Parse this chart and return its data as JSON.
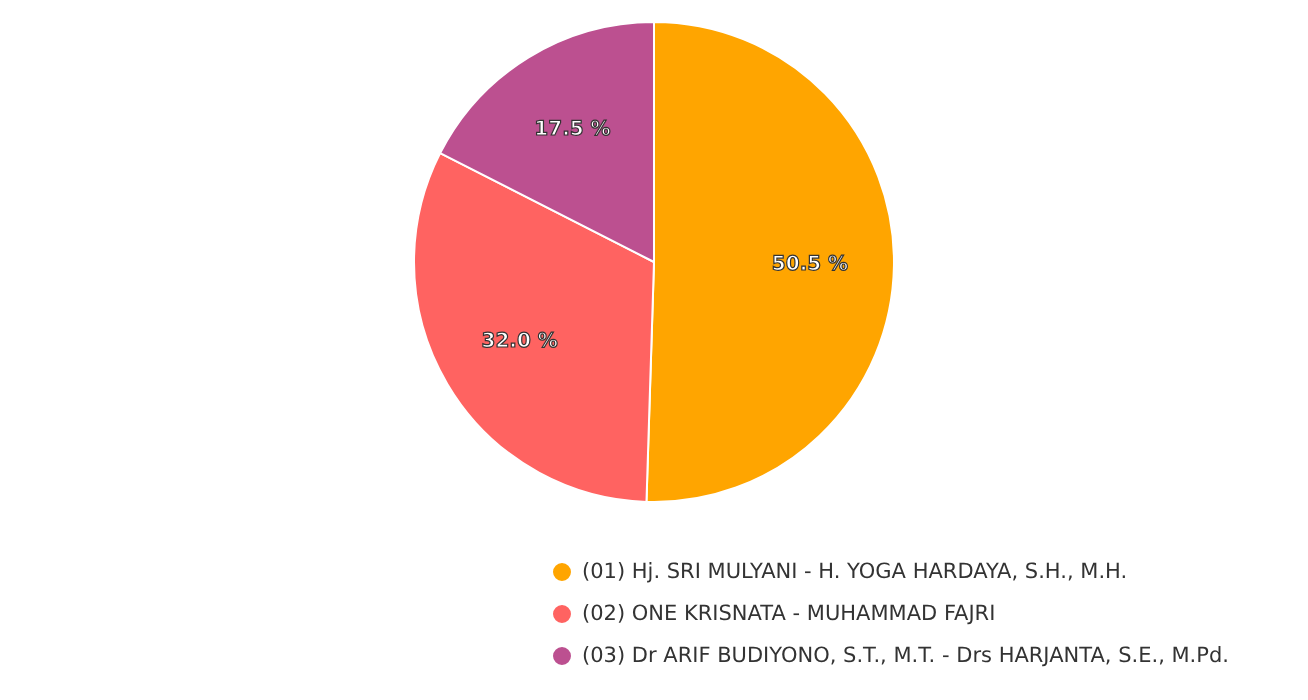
{
  "chart_data": {
    "type": "pie",
    "categories": [
      "(01) Hj. SRI MULYANI - H. YOGA HARDAYA, S.H., M.H.",
      "(02) ONE KRISNATA - MUHAMMAD FAJRI",
      "(03) Dr ARIF BUDIYONO, S.T., M.T. - Drs HARJANTA, S.E., M.Pd."
    ],
    "values": [
      50.5,
      32.0,
      17.5
    ],
    "colors": [
      "#ffa500",
      "#ff6361",
      "#bc5090"
    ],
    "value_labels": [
      "50.5 %",
      "32.0 %",
      "17.5 %"
    ],
    "legend": "bottom"
  }
}
